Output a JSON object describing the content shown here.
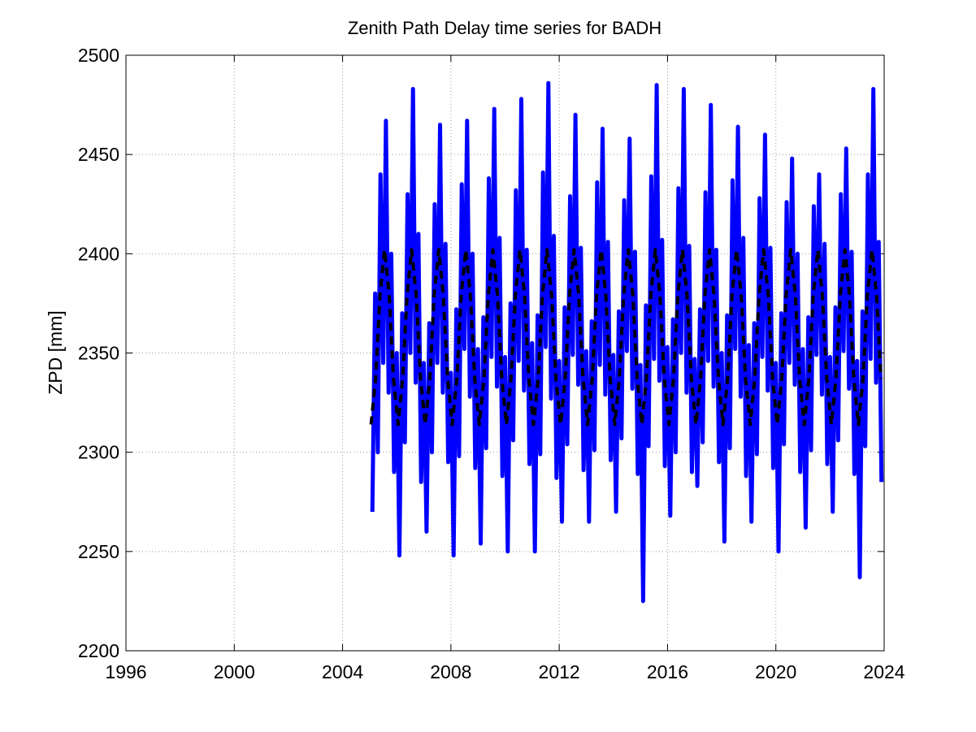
{
  "chart_data": {
    "type": "line",
    "title": "Zenith Path Delay time series for BADH",
    "y_label": "ZPD [mm]",
    "xlim": [
      1996,
      2024
    ],
    "xticks": [
      1996,
      2000,
      2004,
      2008,
      2012,
      2016,
      2020,
      2024
    ],
    "ylim": [
      2200,
      2500
    ],
    "yticks": [
      2200,
      2250,
      2300,
      2350,
      2400,
      2450,
      2500
    ],
    "grid": true,
    "series": [
      {
        "color": "#0000ff",
        "dashed": false,
        "width": 5,
        "x": [
          2005.1,
          2005.2,
          2005.3,
          2005.4,
          2005.5,
          2005.6,
          2005.7,
          2005.8,
          2005.9,
          2006.0,
          2006.1,
          2006.2,
          2006.3,
          2006.4,
          2006.5,
          2006.6,
          2006.7,
          2006.8,
          2006.9,
          2007.0,
          2007.1,
          2007.2,
          2007.3,
          2007.4,
          2007.5,
          2007.6,
          2007.7,
          2007.8,
          2007.9,
          2008.0,
          2008.1,
          2008.2,
          2008.3,
          2008.4,
          2008.5,
          2008.6,
          2008.7,
          2008.8,
          2008.9,
          2009.0,
          2009.1,
          2009.2,
          2009.3,
          2009.4,
          2009.5,
          2009.6,
          2009.7,
          2009.8,
          2009.9,
          2010.0,
          2010.1,
          2010.2,
          2010.3,
          2010.4,
          2010.5,
          2010.6,
          2010.7,
          2010.8,
          2010.9,
          2011.0,
          2011.1,
          2011.2,
          2011.3,
          2011.4,
          2011.5,
          2011.6,
          2011.7,
          2011.8,
          2011.9,
          2012.0,
          2012.1,
          2012.2,
          2012.3,
          2012.4,
          2012.5,
          2012.6,
          2012.7,
          2012.8,
          2012.9,
          2013.0,
          2013.1,
          2013.2,
          2013.3,
          2013.4,
          2013.5,
          2013.6,
          2013.7,
          2013.8,
          2013.9,
          2014.0,
          2014.1,
          2014.2,
          2014.3,
          2014.4,
          2014.5,
          2014.6,
          2014.7,
          2014.8,
          2014.9,
          2015.0,
          2015.1,
          2015.2,
          2015.3,
          2015.4,
          2015.5,
          2015.6,
          2015.7,
          2015.8,
          2015.9,
          2016.0,
          2016.1,
          2016.2,
          2016.3,
          2016.4,
          2016.5,
          2016.6,
          2016.7,
          2016.8,
          2016.9,
          2017.0,
          2017.1,
          2017.2,
          2017.3,
          2017.4,
          2017.5,
          2017.6,
          2017.7,
          2017.8,
          2017.9,
          2018.0,
          2018.1,
          2018.2,
          2018.3,
          2018.4,
          2018.5,
          2018.6,
          2018.7,
          2018.8,
          2018.9,
          2019.0,
          2019.1,
          2019.2,
          2019.3,
          2019.4,
          2019.5,
          2019.6,
          2019.7,
          2019.8,
          2019.9,
          2020.0,
          2020.1,
          2020.2,
          2020.3,
          2020.4,
          2020.5,
          2020.6,
          2020.7,
          2020.8,
          2020.9,
          2021.0,
          2021.1,
          2021.2,
          2021.3,
          2021.4,
          2021.5,
          2021.6,
          2021.7,
          2021.8,
          2021.9,
          2022.0,
          2022.1,
          2022.2,
          2022.3,
          2022.4,
          2022.5,
          2022.6,
          2022.7,
          2022.8,
          2022.9,
          2023.0,
          2023.1,
          2023.2,
          2023.3,
          2023.4,
          2023.5,
          2023.6,
          2023.7,
          2023.8,
          2023.9
        ],
        "values": [
          2270,
          2380,
          2300,
          2440,
          2345,
          2467,
          2330,
          2400,
          2290,
          2350,
          2248,
          2370,
          2305,
          2430,
          2350,
          2483,
          2335,
          2410,
          2285,
          2345,
          2260,
          2365,
          2300,
          2425,
          2345,
          2465,
          2330,
          2405,
          2295,
          2340,
          2248,
          2372,
          2298,
          2435,
          2352,
          2467,
          2328,
          2400,
          2292,
          2352,
          2254,
          2368,
          2302,
          2438,
          2348,
          2473,
          2333,
          2408,
          2288,
          2348,
          2250,
          2375,
          2306,
          2432,
          2346,
          2478,
          2331,
          2402,
          2294,
          2355,
          2250,
          2369,
          2299,
          2441,
          2353,
          2486,
          2327,
          2409,
          2287,
          2346,
          2265,
          2373,
          2304,
          2429,
          2349,
          2470,
          2334,
          2403,
          2291,
          2351,
          2265,
          2366,
          2301,
          2436,
          2344,
          2463,
          2329,
          2406,
          2296,
          2349,
          2270,
          2371,
          2307,
          2427,
          2351,
          2458,
          2332,
          2401,
          2289,
          2344,
          2225,
          2374,
          2303,
          2439,
          2347,
          2485,
          2336,
          2407,
          2293,
          2353,
          2268,
          2367,
          2300,
          2433,
          2350,
          2483,
          2330,
          2404,
          2290,
          2347,
          2283,
          2372,
          2305,
          2431,
          2346,
          2475,
          2333,
          2402,
          2295,
          2350,
          2255,
          2369,
          2302,
          2437,
          2352,
          2464,
          2328,
          2408,
          2288,
          2354,
          2265,
          2365,
          2299,
          2428,
          2348,
          2460,
          2331,
          2403,
          2292,
          2345,
          2250,
          2370,
          2304,
          2426,
          2345,
          2448,
          2334,
          2400,
          2290,
          2352,
          2262,
          2368,
          2301,
          2424,
          2349,
          2440,
          2329,
          2405,
          2294,
          2348,
          2270,
          2373,
          2306,
          2430,
          2351,
          2453,
          2332,
          2401,
          2289,
          2346,
          2237,
          2371,
          2303,
          2440,
          2347,
          2483,
          2335,
          2406,
          2285
        ]
      },
      {
        "color": "#000000",
        "dashed": true,
        "width": 4,
        "x": [
          2005.05,
          2005.22,
          2005.38,
          2005.55,
          2005.72,
          2005.88,
          2006.05,
          2006.22,
          2006.38,
          2006.55,
          2006.72,
          2006.88,
          2007.05,
          2007.22,
          2007.38,
          2007.55,
          2007.72,
          2007.88,
          2008.05,
          2008.22,
          2008.38,
          2008.55,
          2008.72,
          2008.88,
          2009.05,
          2009.22,
          2009.38,
          2009.55,
          2009.72,
          2009.88,
          2010.05,
          2010.22,
          2010.38,
          2010.55,
          2010.72,
          2010.88,
          2011.05,
          2011.22,
          2011.38,
          2011.55,
          2011.72,
          2011.88,
          2012.05,
          2012.22,
          2012.38,
          2012.55,
          2012.72,
          2012.88,
          2013.05,
          2013.22,
          2013.38,
          2013.55,
          2013.72,
          2013.88,
          2014.05,
          2014.22,
          2014.38,
          2014.55,
          2014.72,
          2014.88,
          2015.05,
          2015.22,
          2015.38,
          2015.55,
          2015.72,
          2015.88,
          2016.05,
          2016.22,
          2016.38,
          2016.55,
          2016.72,
          2016.88,
          2017.05,
          2017.22,
          2017.38,
          2017.55,
          2017.72,
          2017.88,
          2018.05,
          2018.22,
          2018.38,
          2018.55,
          2018.72,
          2018.88,
          2019.05,
          2019.22,
          2019.38,
          2019.55,
          2019.72,
          2019.88,
          2020.05,
          2020.22,
          2020.38,
          2020.55,
          2020.72,
          2020.88,
          2021.05,
          2021.22,
          2021.38,
          2021.55,
          2021.72,
          2021.88,
          2022.05,
          2022.22,
          2022.38,
          2022.55,
          2022.72,
          2022.88,
          2023.05,
          2023.22,
          2023.38,
          2023.55,
          2023.72,
          2023.88
        ],
        "values": [
          2314,
          2337,
          2379,
          2402,
          2379,
          2337,
          2314,
          2337,
          2379,
          2402,
          2379,
          2337,
          2314,
          2337,
          2379,
          2402,
          2379,
          2337,
          2314,
          2337,
          2379,
          2402,
          2379,
          2337,
          2314,
          2337,
          2379,
          2402,
          2379,
          2337,
          2314,
          2337,
          2379,
          2402,
          2379,
          2337,
          2314,
          2337,
          2379,
          2402,
          2379,
          2337,
          2314,
          2337,
          2379,
          2402,
          2379,
          2337,
          2314,
          2337,
          2379,
          2402,
          2379,
          2337,
          2314,
          2337,
          2379,
          2402,
          2379,
          2337,
          2314,
          2337,
          2379,
          2402,
          2379,
          2337,
          2314,
          2337,
          2379,
          2402,
          2379,
          2337,
          2314,
          2337,
          2379,
          2402,
          2379,
          2337,
          2314,
          2337,
          2379,
          2402,
          2379,
          2337,
          2314,
          2337,
          2379,
          2402,
          2379,
          2337,
          2314,
          2337,
          2379,
          2402,
          2379,
          2337,
          2314,
          2337,
          2379,
          2402,
          2379,
          2337,
          2314,
          2337,
          2379,
          2402,
          2379,
          2337,
          2314,
          2337,
          2379,
          2402,
          2379,
          2337
        ]
      }
    ]
  }
}
